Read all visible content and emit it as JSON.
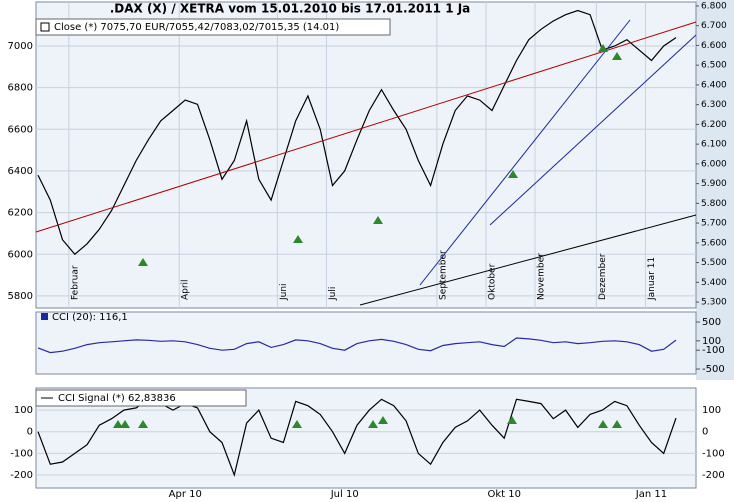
{
  "chart_data": [
    {
      "type": "line",
      "title": ".DAX (X) / XETRA vom 15.01.2010 bis 17.01.2011 1 Ja",
      "categories": [
        null,
        null,
        null,
        "Februar",
        null,
        null,
        null,
        null,
        null,
        null,
        null,
        null,
        "April",
        null,
        null,
        null,
        null,
        null,
        null,
        null,
        "Juni",
        null,
        null,
        null,
        "Juli",
        null,
        null,
        null,
        null,
        null,
        null,
        null,
        null,
        "September",
        null,
        null,
        null,
        "Oktober",
        null,
        null,
        null,
        "November",
        null,
        null,
        null,
        null,
        "Dezember",
        null,
        null,
        null,
        "Januar 11",
        null,
        null
      ],
      "series": [
        {
          "name": "Close (*) 7075,70 EUR/7055,42/7083,02/7015,35 (14.01)",
          "color": "#000000",
          "values": [
            6380,
            6260,
            6070,
            6000,
            6050,
            6120,
            6210,
            6330,
            6450,
            6550,
            6640,
            6690,
            6740,
            6720,
            6550,
            6360,
            6450,
            6640,
            6360,
            6260,
            6450,
            6640,
            6760,
            6600,
            6330,
            6400,
            6550,
            6690,
            6790,
            6690,
            6600,
            6450,
            6330,
            6530,
            6690,
            6760,
            6740,
            6690,
            6810,
            6930,
            7030,
            7080,
            7120,
            7150,
            7170,
            7150,
            6980,
            7000,
            7030,
            6980,
            6930,
            7000,
            7040
          ]
        }
      ],
      "ylim": [
        5742,
        7211
      ],
      "yticks": [
        5800,
        6000,
        6200,
        6400,
        6600,
        6800,
        7000
      ],
      "y2lim": [
        5270,
        6820
      ],
      "y2ticks": [
        {
          "value": 5300,
          "label": "5.300"
        },
        {
          "value": 5400,
          "label": "5.400"
        },
        {
          "value": 5500,
          "label": "5.500"
        },
        {
          "value": 5600,
          "label": "5.600"
        },
        {
          "value": 5700,
          "label": "5.700"
        },
        {
          "value": 5800,
          "label": "5.800"
        },
        {
          "value": 5900,
          "label": "5.900"
        },
        {
          "value": 6000,
          "label": "6.000"
        },
        {
          "value": 6100,
          "label": "6.100"
        },
        {
          "value": 6200,
          "label": "6.200"
        },
        {
          "value": 6300,
          "label": "6.300"
        },
        {
          "value": 6400,
          "label": "6.400"
        },
        {
          "value": 6500,
          "label": "6.500"
        },
        {
          "value": 6600,
          "label": "6.600"
        },
        {
          "value": 6700,
          "label": "6.700"
        },
        {
          "value": 6800,
          "label": "6.800"
        }
      ],
      "grid": true
    },
    {
      "type": "line",
      "title": "CCI (20): 116,1",
      "series": [
        {
          "name": "CCI (20)",
          "color": "#2a2aa0",
          "values": [
            -50,
            -150,
            -120,
            -60,
            20,
            60,
            80,
            100,
            120,
            110,
            90,
            100,
            80,
            20,
            -60,
            -100,
            -80,
            40,
            80,
            -40,
            20,
            120,
            100,
            40,
            -60,
            -100,
            40,
            100,
            130,
            90,
            20,
            -80,
            -110,
            0,
            40,
            60,
            80,
            20,
            -20,
            160,
            140,
            110,
            60,
            80,
            40,
            60,
            90,
            100,
            80,
            20,
            -120,
            -80,
            116.1
          ]
        }
      ],
      "ylim": [
        -606,
        713
      ],
      "yticks": [
        -500,
        -100,
        100,
        500
      ],
      "grid": false
    },
    {
      "type": "line",
      "categories": [
        null,
        null,
        null,
        null,
        null,
        null,
        null,
        null,
        null,
        null,
        null,
        null,
        "Apr 10",
        null,
        null,
        null,
        null,
        null,
        null,
        null,
        null,
        null,
        null,
        null,
        null,
        "Jul 10",
        null,
        null,
        null,
        null,
        null,
        null,
        null,
        null,
        null,
        null,
        null,
        null,
        "Okt 10",
        null,
        null,
        null,
        null,
        null,
        null,
        null,
        null,
        null,
        null,
        null,
        "Jan 11",
        null,
        null
      ],
      "series": [
        {
          "name": "CCI Signal (*) 62,83836",
          "color": "#000000",
          "values": [
            0,
            -150,
            -140,
            -100,
            -60,
            30,
            60,
            100,
            110,
            150,
            130,
            100,
            130,
            110,
            0,
            -50,
            -200,
            40,
            100,
            -30,
            -50,
            140,
            120,
            80,
            0,
            -100,
            30,
            100,
            150,
            120,
            50,
            -100,
            -150,
            -50,
            20,
            50,
            100,
            30,
            -30,
            150,
            140,
            130,
            60,
            100,
            20,
            80,
            100,
            140,
            120,
            30,
            -50,
            -100,
            62.84
          ]
        }
      ],
      "ylim": [
        -260,
        202
      ],
      "yticks": [
        -200,
        -100,
        0,
        100
      ],
      "grid": true
    }
  ]
}
